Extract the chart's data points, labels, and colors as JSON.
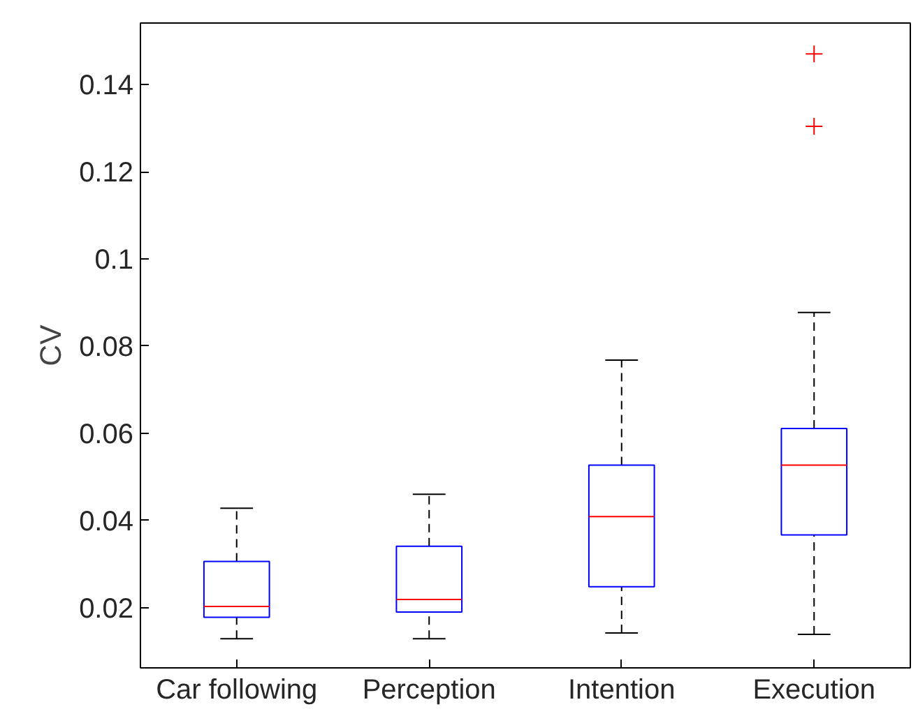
{
  "chart_data": {
    "type": "box",
    "ylabel": "CV",
    "categories": [
      "Car following",
      "Perception",
      "Intention",
      "Execution"
    ],
    "ylim": [
      0.0062,
      0.1541
    ],
    "yticks": [
      0.02,
      0.04,
      0.06,
      0.08,
      0.1,
      0.12,
      0.14
    ],
    "grid": false,
    "marker": "cross",
    "series": [
      {
        "color": "#0000ff",
        "boxes": [
          {
            "low": 0.0129,
            "q1": 0.0178,
            "median": 0.0203,
            "q3": 0.0306,
            "high": 0.0428
          },
          {
            "low": 0.0129,
            "q1": 0.019,
            "median": 0.0219,
            "q3": 0.0341,
            "high": 0.046
          },
          {
            "low": 0.0142,
            "q1": 0.0248,
            "median": 0.0409,
            "q3": 0.0527,
            "high": 0.0768
          },
          {
            "low": 0.0139,
            "q1": 0.0367,
            "median": 0.0527,
            "q3": 0.0611,
            "high": 0.0877,
            "outliers": [
              0.147,
              0.1304
            ]
          }
        ]
      }
    ]
  }
}
